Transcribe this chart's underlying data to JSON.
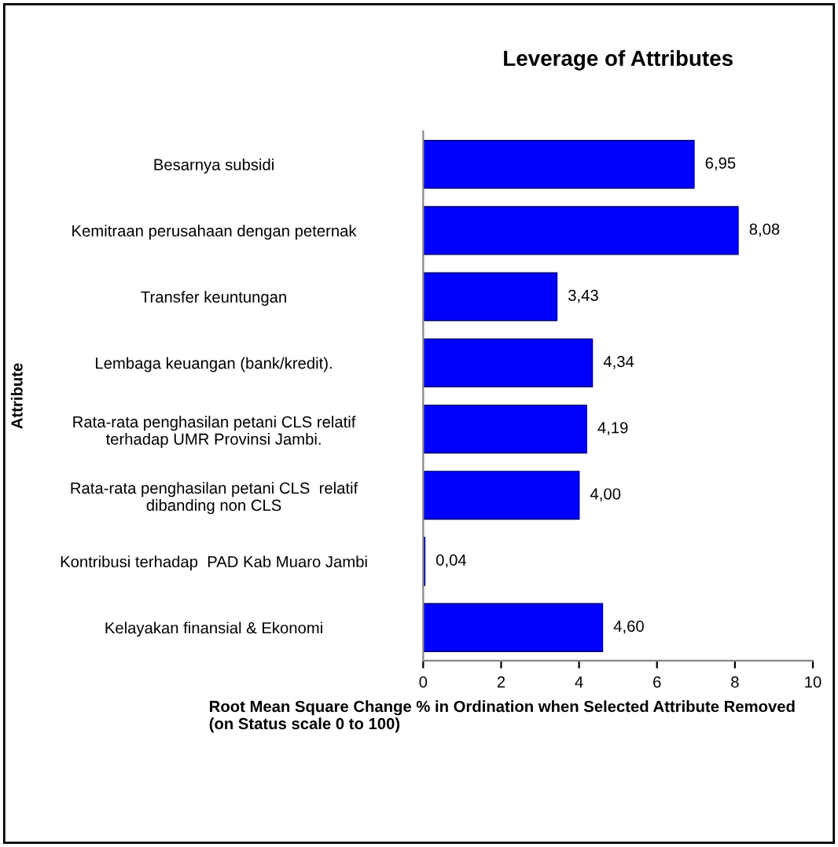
{
  "chart_data": {
    "type": "bar",
    "orientation": "horizontal",
    "title": "Leverage of Attributes",
    "xlabel": "Root Mean Square Change % in Ordination when Selected Attribute Removed\n(on Status scale 0 to 100)",
    "ylabel": "Attribute",
    "categories": [
      "Besarnya subsidi",
      "Kemitraan perusahaan dengan peternak",
      "Transfer keuntungan",
      "Lembaga keuangan (bank/kredit).",
      "Rata-rata penghasilan petani CLS relatif\nterhadap UMR Provinsi Jambi.",
      "Rata-rata penghasilan petani CLS  relatif\ndibanding non CLS",
      "Kontribusi terhadap  PAD Kab Muaro Jambi",
      "Kelayakan finansial & Ekonomi"
    ],
    "values": [
      6.95,
      8.08,
      3.43,
      4.34,
      4.19,
      4.0,
      0.04,
      4.6
    ],
    "value_labels": [
      "6,95",
      "8,08",
      "3,43",
      "4,34",
      "4,19",
      "4,00",
      "0,04",
      "4,60"
    ],
    "color": "#0000ff",
    "xlim": [
      0,
      10
    ],
    "xticks": [
      0,
      2,
      4,
      6,
      8,
      10
    ],
    "grid": false,
    "legend": false
  }
}
